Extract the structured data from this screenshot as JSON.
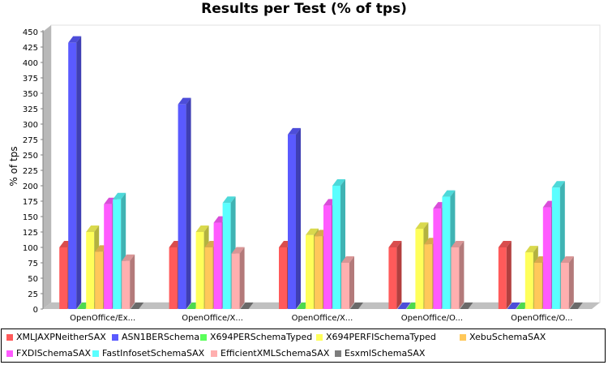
{
  "colors": {
    "series": [
      "#ff5a5a",
      "#5a5aff",
      "#5aff5a",
      "#ffff5a",
      "#ffc85a",
      "#ff5aff",
      "#5affff",
      "#ffafaf",
      "#7d7d7d"
    ],
    "plot_bg": "#ffffff",
    "floor": "#c0c0c0",
    "grid": "#d0d0d0"
  },
  "chart_data": {
    "type": "bar",
    "title": "Results per Test (% of tps)",
    "xlabel": "",
    "ylabel": "% of tps",
    "ylim": [
      0,
      450
    ],
    "yticks": [
      0,
      25,
      50,
      75,
      100,
      125,
      150,
      175,
      200,
      225,
      250,
      275,
      300,
      325,
      350,
      375,
      400,
      425,
      450
    ],
    "categories": [
      "OpenOffice/Ex...",
      "OpenOffice/X...",
      "OpenOffice/X...",
      "OpenOffice/O...",
      "OpenOffice/O..."
    ],
    "series": [
      {
        "name": "XMLJAXPNeitherSAX",
        "values": [
          100,
          100,
          100,
          100,
          100
        ]
      },
      {
        "name": "ASN1BERSchema",
        "values": [
          432,
          332,
          283,
          0,
          0
        ]
      },
      {
        "name": "X694PERSchemaTyped",
        "values": [
          0,
          0,
          0,
          0,
          0
        ]
      },
      {
        "name": "X694PERFISchemaTyped",
        "values": [
          125,
          125,
          120,
          130,
          92
        ]
      },
      {
        "name": "XebuSchemaSAX",
        "values": [
          93,
          100,
          118,
          105,
          75
        ]
      },
      {
        "name": "FXDISchemaSAX",
        "values": [
          170,
          140,
          168,
          163,
          165
        ]
      },
      {
        "name": "FastInfosetSchemaSAX",
        "values": [
          178,
          172,
          200,
          182,
          197
        ]
      },
      {
        "name": "EfficientXMLSchemaSAX",
        "values": [
          78,
          90,
          75,
          100,
          75
        ]
      },
      {
        "name": "EsxmlSchemaSAX",
        "values": [
          0,
          0,
          0,
          0,
          0
        ]
      }
    ],
    "legend_position": "bottom",
    "grid": false
  }
}
